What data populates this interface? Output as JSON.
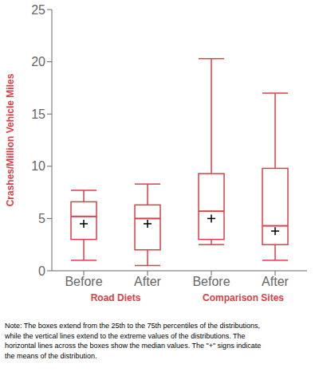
{
  "chart_data": {
    "type": "box",
    "ylabel": "Crashes/Million Vehicle Miles",
    "color": "#D9404A",
    "categories": [
      "Before",
      "After",
      "Before",
      "After"
    ],
    "groups": [
      "Road Diets",
      "Road Diets",
      "Comparison Sites",
      "Comparison Sites"
    ],
    "series": [
      {
        "type": "box",
        "color": "#D9404A",
        "values": [
          {
            "q1": 3.0,
            "median": 5.2,
            "q3": 6.6,
            "whisker_low": 1.0,
            "whisker_high": 7.7
          },
          {
            "q1": 2.0,
            "median": 5.0,
            "q3": 6.3,
            "whisker_low": 0.5,
            "whisker_high": 8.3
          },
          {
            "q1": 3.0,
            "median": 5.7,
            "q3": 9.3,
            "whisker_low": 2.5,
            "whisker_high": 20.3
          },
          {
            "q1": 2.5,
            "median": 4.3,
            "q3": 9.8,
            "whisker_low": 1.0,
            "whisker_high": 17.0
          }
        ]
      },
      {
        "type": "scatter",
        "marker": "+",
        "color": "black",
        "values": [
          4.5,
          4.5,
          5.0,
          3.8
        ]
      }
    ],
    "ylim": [
      0,
      25
    ],
    "yticks": [
      0,
      5,
      10,
      15,
      20,
      25
    ],
    "note": "Note: The boxes extend from the 25th to the 75th percentiles of the distributions,\nwhile the vertical lines extend to the extreme values of the distributions. The\nhorizontal lines across the boxes show the median values. The \"+\" signs indicate\nthe means of the distribution."
  }
}
